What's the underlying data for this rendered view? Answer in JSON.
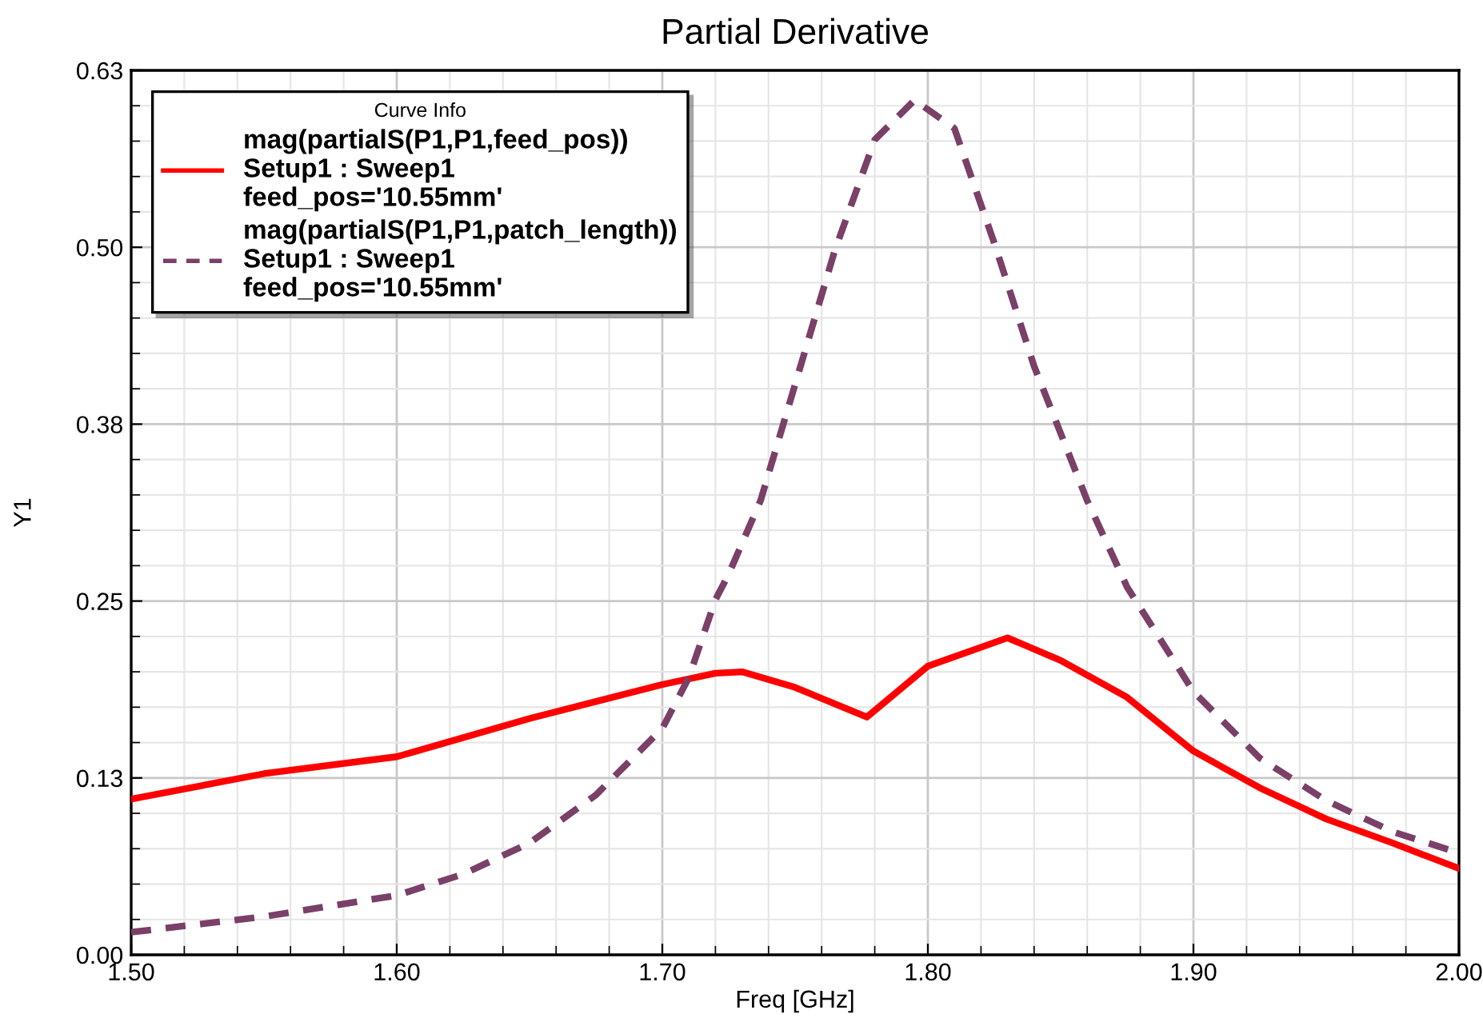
{
  "chart_data": {
    "type": "line",
    "title": "Partial Derivative",
    "xlabel": "Freq [GHz]",
    "ylabel": "Y1",
    "legend_title": "Curve Info",
    "legend": "top left",
    "grid": true,
    "xlim": [
      1.5,
      2.0
    ],
    "ylim": [
      0,
      0.625
    ],
    "xticks": [
      {
        "value": 1.5,
        "label": "1.50"
      },
      {
        "value": 1.6,
        "label": "1.60"
      },
      {
        "value": 1.7,
        "label": "1.70"
      },
      {
        "value": 1.8,
        "label": "1.80"
      },
      {
        "value": 1.9,
        "label": "1.90"
      },
      {
        "value": 2.0,
        "label": "2.00"
      }
    ],
    "yticks": [
      {
        "value": 0,
        "label": "0.00"
      },
      {
        "value": 0.125,
        "label": "0.13"
      },
      {
        "value": 0.25,
        "label": "0.25"
      },
      {
        "value": 0.375,
        "label": "0.38"
      },
      {
        "value": 0.5,
        "label": "0.50"
      },
      {
        "value": 0.625,
        "label": "0.63"
      }
    ],
    "series": [
      {
        "name": "mag(partialS(P1,P1,feed_pos))\nSetup1 : Sweep1\nfeed_pos='10.55mm'",
        "color": "#ff0000",
        "line_style": "solid",
        "x": [
          1.5,
          1.55,
          1.6,
          1.65,
          1.7,
          1.72,
          1.73,
          1.75,
          1.777,
          1.8,
          1.83,
          1.85,
          1.875,
          1.9,
          1.925,
          1.95,
          1.975,
          2.0
        ],
        "values": [
          0.11,
          0.128,
          0.14,
          0.167,
          0.191,
          0.199,
          0.2,
          0.189,
          0.168,
          0.204,
          0.224,
          0.208,
          0.182,
          0.144,
          0.118,
          0.096,
          0.079,
          0.061
        ]
      },
      {
        "name": "mag(partialS(P1,P1,patch_length))\nSetup1 : Sweep1\nfeed_pos='10.55mm'",
        "color": "#7a4068",
        "line_style": "dashed",
        "x": [
          1.5,
          1.55,
          1.6,
          1.625,
          1.65,
          1.675,
          1.7,
          1.71,
          1.72,
          1.725,
          1.737,
          1.75,
          1.765,
          1.78,
          1.795,
          1.81,
          1.825,
          1.84,
          1.86,
          1.875,
          1.9,
          1.925,
          1.95,
          1.975,
          2.0
        ],
        "values": [
          0.016,
          0.027,
          0.042,
          0.057,
          0.079,
          0.113,
          0.16,
          0.196,
          0.251,
          0.269,
          0.321,
          0.403,
          0.498,
          0.576,
          0.604,
          0.584,
          0.503,
          0.416,
          0.321,
          0.26,
          0.186,
          0.139,
          0.109,
          0.087,
          0.072
        ]
      }
    ]
  }
}
